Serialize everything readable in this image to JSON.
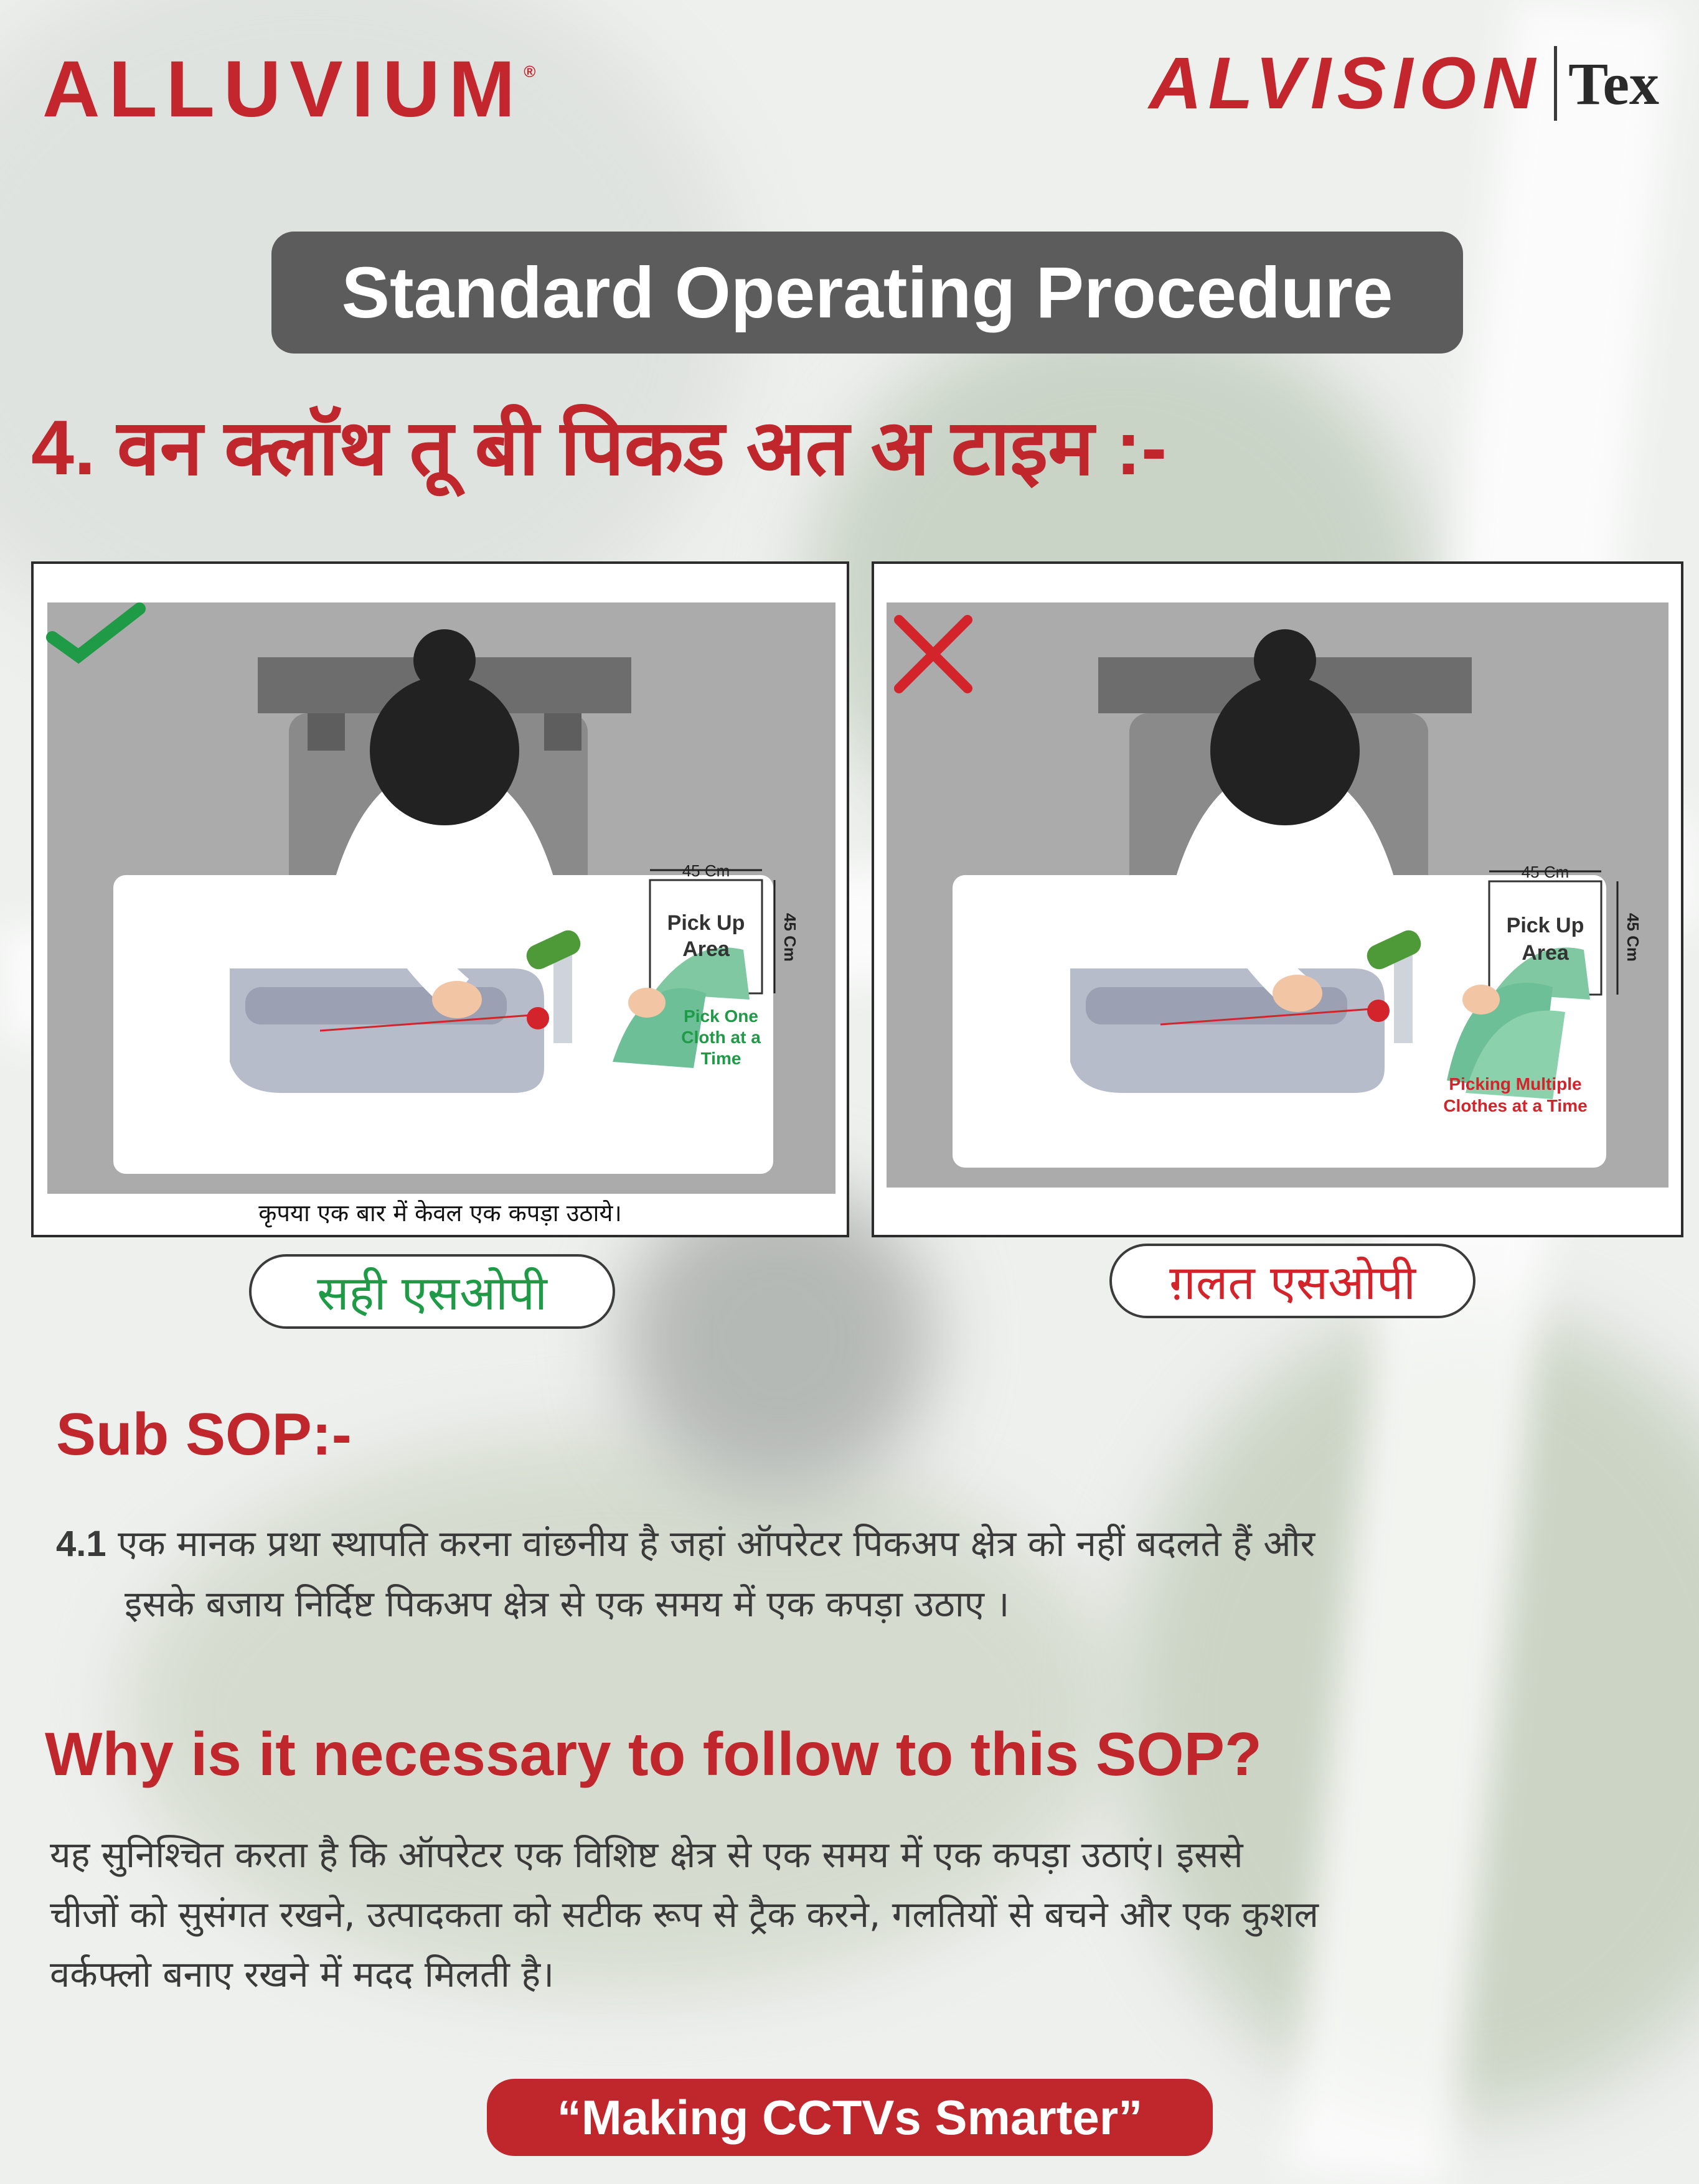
{
  "brand": {
    "left_logo": "ALLUVIUM",
    "left_logo_mark": "®",
    "right_logo": "ALVISION",
    "right_logo_suffix": "Tex"
  },
  "title": "Standard Operating Procedure",
  "heading": "4. वन क्लॉथ तू बी पिकड अत अ टाइम :-",
  "panels": {
    "correct": {
      "mark_icon": "check-icon",
      "width_label": "45 Cm",
      "height_label": "45 Cm",
      "area_label_1": "Pick Up",
      "area_label_2": "Area",
      "note_1": "Pick One",
      "note_2": "Cloth at a",
      "note_3": "Time",
      "caption": "कृपया एक बार में केवल एक कपड़ा उठाये।",
      "label": "सही एसओपी",
      "label_color": "#1f9a46"
    },
    "wrong": {
      "mark_icon": "cross-icon",
      "width_label": "45 Cm",
      "height_label": "45 Cm",
      "area_label_1": "Pick Up",
      "area_label_2": "Area",
      "note_1": "Picking Multiple",
      "note_2": "Clothes at a Time",
      "label": "ग़लत एसओपी",
      "label_color": "#d3242b"
    }
  },
  "sub_sop": {
    "title": "Sub SOP:-",
    "number": "4.1",
    "line1": "एक मानक प्रथा स्थापति करना वांछनीय है जहां ऑपरेटर पिकअप क्षेत्र को नहीं बदलते हैं और",
    "line2": "इसके बजाय निर्दिष्ट पिकअप क्षेत्र से एक समय में एक कपड़ा उठाए ।"
  },
  "why": {
    "title": "Why is it necessary to follow to this SOP?",
    "line1": "यह सुनिश्चित करता है कि ऑपरेटर एक विशिष्ट क्षेत्र  से एक समय में एक कपड़ा उठाएं। इससे",
    "line2": "चीजों को सुसंगत रखने, उत्पादकता को सटीक रूप से ट्रैक करने, गलतियों से बचने और एक कुशल",
    "line3": " वर्कफ्लो बनाए रखने में मदद मिलती है।"
  },
  "tagline": "“Making CCTVs Smarter”",
  "colors": {
    "brand_red": "#c0272d",
    "pill_gray": "#5c5c5c",
    "good_green": "#1f9a46",
    "bad_red": "#d3242b"
  }
}
